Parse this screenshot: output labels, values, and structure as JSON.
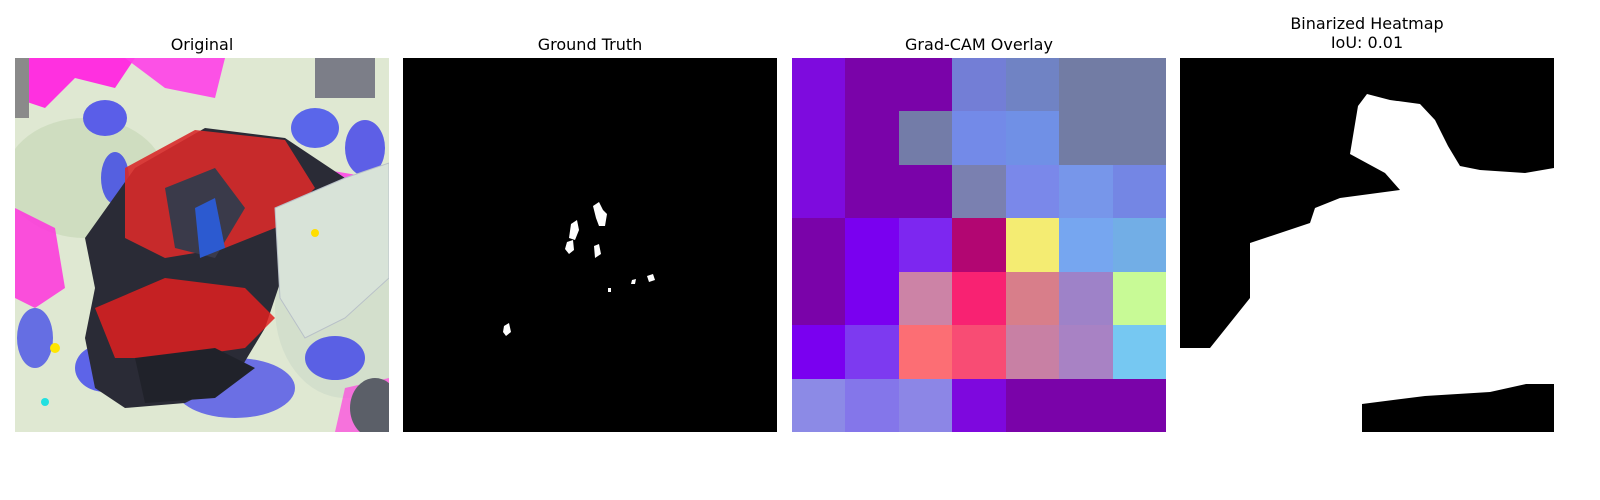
{
  "panels": [
    {
      "title": "Original"
    },
    {
      "title": "Ground Truth"
    },
    {
      "title": "Grad-CAM Overlay"
    },
    {
      "title": "Binarized Heatmap",
      "subtitle": "IoU: 0.01"
    }
  ],
  "gradcam_grid": [
    [
      "#7e0bde",
      "#7a03a9",
      "#7a03a9",
      "#737ed6",
      "#7083c4",
      "#727ca4",
      "#727ca4"
    ],
    [
      "#7e0bde",
      "#7a03a9",
      "#737ca8",
      "#738ae8",
      "#7090e6",
      "#727ca4",
      "#727ca4"
    ],
    [
      "#7e0bde",
      "#7a03a9",
      "#7a03a9",
      "#7a80b0",
      "#7a88ea",
      "#7796ea",
      "#7486e4"
    ],
    [
      "#7a03a9",
      "#7a00f0",
      "#7d27f0",
      "#b20672",
      "#f4ec72",
      "#76a6f0",
      "#72aee6"
    ],
    [
      "#7a03a9",
      "#7a00f0",
      "#cc83a6",
      "#f82272",
      "#d87e8a",
      "#9e82c8",
      "#c8fa96"
    ],
    [
      "#7a00f0",
      "#7d3af0",
      "#fc6e74",
      "#f84c74",
      "#c880a4",
      "#a882c4",
      "#76c8f2"
    ],
    [
      "#8c8ae6",
      "#8476ea",
      "#8c86e6",
      "#7e08de",
      "#7a03a9",
      "#7a03a9",
      "#7a03a9"
    ]
  ]
}
